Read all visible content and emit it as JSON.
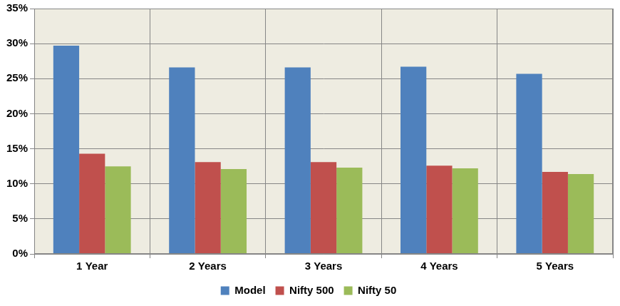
{
  "chart_data": {
    "type": "bar",
    "categories": [
      "1 Year",
      "2 Years",
      "3 Years",
      "4 Years",
      "5 Years"
    ],
    "series": [
      {
        "name": "Model",
        "color": "#4F81BD",
        "values": [
          29.7,
          26.6,
          26.6,
          26.7,
          25.7
        ]
      },
      {
        "name": "Nifty 500",
        "color": "#C0504D",
        "values": [
          14.3,
          13.1,
          13.1,
          12.6,
          11.7
        ]
      },
      {
        "name": "Nifty 50",
        "color": "#9BBB59",
        "values": [
          12.5,
          12.1,
          12.3,
          12.2,
          11.4
        ]
      }
    ],
    "ylim": [
      0,
      35
    ],
    "yticks": [
      {
        "value": 0,
        "label": "0%"
      },
      {
        "value": 5,
        "label": "5%"
      },
      {
        "value": 10,
        "label": "10%"
      },
      {
        "value": 15,
        "label": "15%"
      },
      {
        "value": 20,
        "label": "20%"
      },
      {
        "value": 25,
        "label": "25%"
      },
      {
        "value": 30,
        "label": "30%"
      },
      {
        "value": 35,
        "label": "35%"
      }
    ],
    "grid": true,
    "legend": "bottom"
  }
}
